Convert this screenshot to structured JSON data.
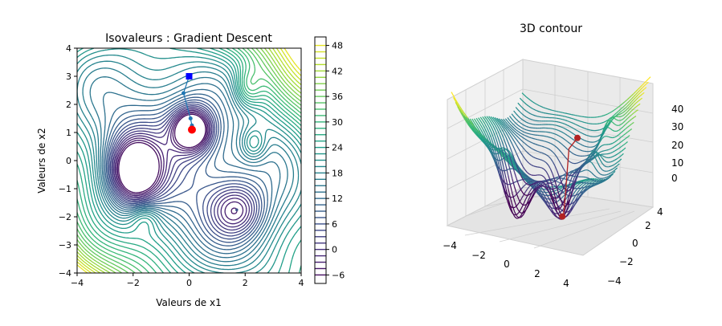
{
  "chart_data": [
    {
      "type": "contour",
      "title": "Isovaleurs : Gradient Descent",
      "xlabel": "Valeurs de x1",
      "ylabel": "Valeurs de x2",
      "xlim": [
        -4,
        4
      ],
      "ylim": [
        -4,
        4
      ],
      "x_ticks": [
        "−4",
        "−2",
        "0",
        "2",
        "4"
      ],
      "y_ticks": [
        "−4",
        "−3",
        "−2",
        "−1",
        "0",
        "1",
        "2",
        "3",
        "4"
      ],
      "colorbar_range": [
        -8,
        50
      ],
      "colorbar_ticks": [
        "48",
        "42",
        "36",
        "30",
        "24",
        "18",
        "12",
        "6",
        "0",
        "−6"
      ],
      "colormap": "viridis",
      "start_point": {
        "x": 0.0,
        "y": 3.0,
        "color": "#0000ff"
      },
      "path": [
        {
          "x": 0.0,
          "y": 3.0
        },
        {
          "x": -0.2,
          "y": 2.4
        },
        {
          "x": 0.05,
          "y": 1.5
        },
        {
          "x": 0.1,
          "y": 1.25
        },
        {
          "x": 0.08,
          "y": 1.15
        }
      ],
      "end_point": {
        "x": 0.1,
        "y": 1.1,
        "color": "#ff0000"
      },
      "minima": [
        {
          "x": -2.0,
          "y": -0.4
        },
        {
          "x": 0.1,
          "y": 1.1
        },
        {
          "x": 1.7,
          "y": -1.75
        }
      ],
      "maxima": [
        {
          "x": 2.1,
          "y": 2.6
        },
        {
          "x": 2.3,
          "y": 0.6
        },
        {
          "x": -1.6,
          "y": -2.0
        }
      ]
    },
    {
      "type": "surface3d",
      "title": "3D contour",
      "x_ticks": [
        "−4",
        "−2",
        "0",
        "2",
        "4"
      ],
      "y_ticks": [
        "−4",
        "−2",
        "0",
        "2",
        "4"
      ],
      "z_ticks": [
        "0",
        "10",
        "20",
        "30",
        "40"
      ],
      "colormap": "viridis",
      "path_color": "#b22222"
    }
  ]
}
